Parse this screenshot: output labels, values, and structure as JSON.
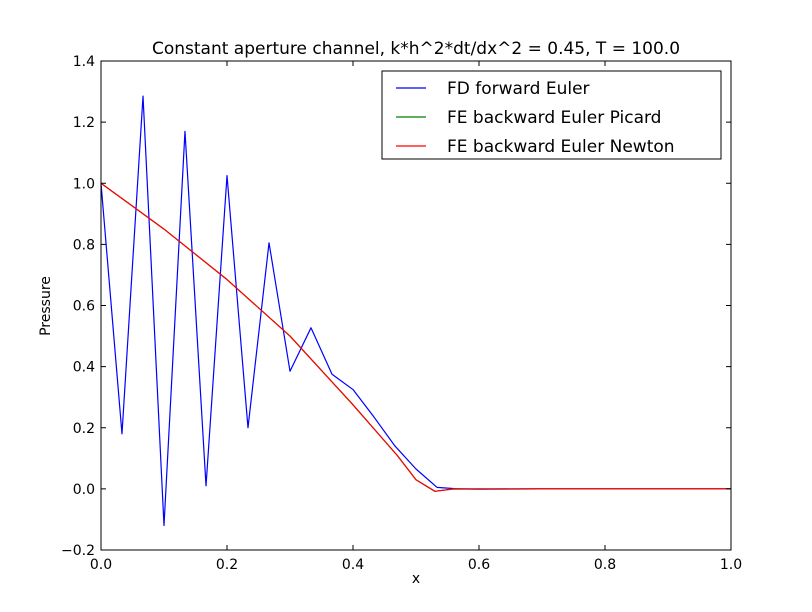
{
  "chart_data": {
    "type": "line",
    "title": "Constant aperture channel, k*h^2*dt/dx^2 = 0.45, T = 100.0",
    "xlabel": "x",
    "ylabel": "Pressure",
    "xlim": [
      0.0,
      1.0
    ],
    "ylim": [
      -0.2,
      1.4
    ],
    "xticks": [
      0.0,
      0.2,
      0.4,
      0.6,
      0.8,
      1.0
    ],
    "xtick_labels": [
      "0.0",
      "0.2",
      "0.4",
      "0.6",
      "0.8",
      "1.0"
    ],
    "yticks": [
      -0.2,
      0.0,
      0.2,
      0.4,
      0.6,
      0.8,
      1.0,
      1.2,
      1.4
    ],
    "ytick_labels": [
      "−0.2",
      "0.0",
      "0.2",
      "0.4",
      "0.6",
      "0.8",
      "1.0",
      "1.2",
      "1.4"
    ],
    "grid": false,
    "legend_position": "top-right",
    "series": [
      {
        "name": "FD forward Euler",
        "color": "#0000ff",
        "x": [
          0.0,
          0.0333,
          0.0667,
          0.1,
          0.1333,
          0.1667,
          0.2,
          0.2333,
          0.2667,
          0.3,
          0.3333,
          0.3667,
          0.4,
          0.4333,
          0.4667,
          0.5,
          0.5333,
          0.5667,
          0.6,
          0.6333,
          0.6667,
          0.7,
          0.7333,
          0.7667,
          0.8,
          0.8333,
          0.8667,
          0.9,
          0.9333,
          0.9667,
          1.0
        ],
        "values": [
          1.0,
          0.18,
          1.285,
          -0.12,
          1.17,
          0.01,
          1.025,
          0.2,
          0.805,
          0.385,
          0.527,
          0.375,
          0.325,
          0.235,
          0.14,
          0.065,
          0.005,
          0.0,
          0.0,
          0.0,
          0.0,
          0.0,
          0.0,
          0.0,
          0.0,
          0.0,
          0.0,
          0.0,
          0.0,
          0.0,
          0.0
        ]
      },
      {
        "name": "FE backward Euler Picard",
        "color": "#008000",
        "x": [
          0.0,
          0.1,
          0.2,
          0.3,
          0.4,
          0.47,
          0.5,
          0.53,
          0.56,
          0.6,
          0.7,
          0.8,
          0.9,
          1.0
        ],
        "values": [
          1.0,
          0.85,
          0.685,
          0.5,
          0.275,
          0.11,
          0.03,
          -0.008,
          0.0,
          -0.001,
          0.0,
          0.0,
          0.0,
          0.0
        ]
      },
      {
        "name": "FE backward Euler Newton",
        "color": "#ff0000",
        "x": [
          0.0,
          0.1,
          0.2,
          0.3,
          0.4,
          0.47,
          0.5,
          0.53,
          0.56,
          0.6,
          0.7,
          0.8,
          0.9,
          1.0
        ],
        "values": [
          1.0,
          0.85,
          0.685,
          0.5,
          0.275,
          0.11,
          0.03,
          -0.008,
          0.0,
          -0.001,
          0.0,
          0.0,
          0.0,
          0.0
        ]
      }
    ]
  }
}
